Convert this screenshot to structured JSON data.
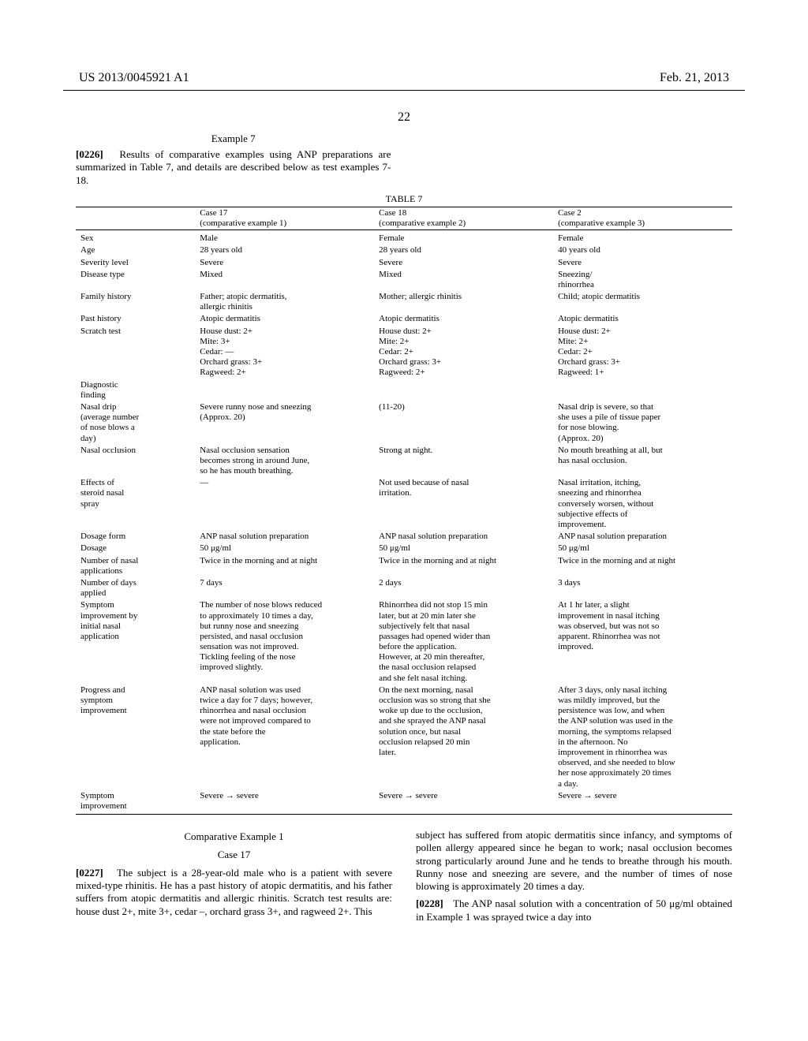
{
  "header": {
    "left": "US 2013/0045921 A1",
    "right": "Feb. 21, 2013"
  },
  "page_number": "22",
  "example7": {
    "title": "Example 7",
    "para_num": "[0226]",
    "para_text": "Results of comparative examples using ANP preparations are summarized in Table 7, and details are described below as test examples 7-18."
  },
  "table7": {
    "title": "TABLE 7",
    "col_labels": {
      "blank": "",
      "c1a": "Case 17",
      "c1b": "(comparative example 1)",
      "c2a": "Case 18",
      "c2b": "(comparative example 2)",
      "c3a": "Case 2",
      "c3b": "(comparative example 3)"
    },
    "rows": [
      {
        "h": "Sex",
        "c1": "Male",
        "c2": "Female",
        "c3": "Female"
      },
      {
        "h": "Age",
        "c1": "28 years old",
        "c2": "28 years old",
        "c3": "40 years old"
      },
      {
        "h": "Severity level",
        "c1": "Severe",
        "c2": "Severe",
        "c3": "Severe"
      },
      {
        "h": "Disease type",
        "c1": "Mixed",
        "c2": "Mixed",
        "c3": "Sneezing/\nrhinorrhea"
      },
      {
        "h": "Family history",
        "c1": "Father; atopic dermatitis,\nallergic rhinitis",
        "c2": "Mother; allergic rhinitis",
        "c3": "Child; atopic dermatitis"
      },
      {
        "h": "Past history",
        "c1": "Atopic dermatitis",
        "c2": "Atopic dermatitis",
        "c3": "Atopic dermatitis"
      },
      {
        "h": "Scratch test",
        "c1": "House dust: 2+\nMite: 3+\nCedar: —\nOrchard grass: 3+\nRagweed: 2+",
        "c2": "House dust: 2+\nMite: 2+\nCedar: 2+\nOrchard grass: 3+\nRagweed: 2+",
        "c3": "House dust: 2+\nMite: 2+\nCedar: 2+\nOrchard grass: 3+\nRagweed: 1+"
      },
      {
        "h": "Diagnostic\nfinding",
        "c1": "",
        "c2": "",
        "c3": ""
      },
      {
        "h": "Nasal drip\n(average number\nof nose blows a\nday)",
        "c1": "Severe runny nose and sneezing\n(Approx. 20)",
        "c2": "(11-20)",
        "c3": "Nasal drip is severe, so that\nshe uses a pile of tissue paper\nfor nose blowing.\n(Approx. 20)"
      },
      {
        "h": "Nasal occlusion",
        "c1": "Nasal occlusion sensation\nbecomes strong in around June,\nso he has mouth breathing.",
        "c2": "Strong at night.",
        "c3": "No mouth breathing at all, but\nhas nasal occlusion."
      },
      {
        "h": "Effects of\nsteroid nasal\nspray",
        "c1": "—",
        "c2": "Not used because of nasal\nirritation.",
        "c3": "Nasal irritation, itching,\nsneezing and rhinorrhea\nconversely worsen, without\nsubjective effects of\nimprovement."
      },
      {
        "h": "Dosage form",
        "c1": "ANP nasal solution preparation",
        "c2": "ANP nasal solution preparation",
        "c3": "ANP nasal solution preparation"
      },
      {
        "h": "Dosage",
        "c1": "50 μg/ml",
        "c2": "50 μg/ml",
        "c3": "50 μg/ml"
      },
      {
        "h": "Number of nasal\napplications",
        "c1": "Twice in the morning and at night",
        "c2": "Twice in the morning and at night",
        "c3": "Twice in the morning and at night"
      },
      {
        "h": "Number of days\napplied",
        "c1": "7 days",
        "c2": "2 days",
        "c3": "3 days"
      },
      {
        "h": "Symptom\nimprovement by\ninitial nasal\napplication",
        "c1": "The number of nose blows reduced\nto approximately 10 times a day,\nbut runny nose and sneezing\npersisted, and nasal occlusion\nsensation was not improved.\nTickling feeling of the nose\nimproved slightly.",
        "c2": "Rhinorrhea did not stop 15 min\nlater, but at 20 min later she\nsubjectively felt that nasal\npassages had opened wider than\nbefore the application.\nHowever, at 20 min thereafter,\nthe nasal occlusion relapsed\nand she felt nasal itching.",
        "c3": "At 1 hr later, a slight\nimprovement in nasal itching\nwas observed, but was not so\napparent. Rhinorrhea was not\nimproved."
      },
      {
        "h": "Progress and\nsymptom\nimprovement",
        "c1": "ANP nasal solution was used\ntwice a day for 7 days; however,\nrhinorrhea and nasal occlusion\nwere not improved compared to\nthe state before the\napplication.",
        "c2": "On the next morning, nasal\nocclusion was so strong that she\nwoke up due to the occlusion,\nand she sprayed the ANP nasal\nsolution once, but nasal\nocclusion relapsed 20 min\nlater.",
        "c3": "After 3 days, only nasal itching\nwas mildly improved, but the\npersistence was low, and when\nthe ANP solution was used in the\nmorning, the symptoms relapsed\nin the afternoon. No\nimprovement in rhinorrhea was\nobserved, and she needed to blow\nher nose approximately 20 times\na day."
      },
      {
        "h": "Symptom\nimprovement",
        "c1": "Severe → severe",
        "c2": "Severe → severe",
        "c3": "Severe → severe"
      }
    ]
  },
  "lower": {
    "comp_heading": "Comparative Example 1",
    "case_heading": "Case 17",
    "left_num": "[0227]",
    "left_text": "The subject is a 28-year-old male who is a patient with severe mixed-type rhinitis. He has a past history of atopic dermatitis, and his father suffers from atopic dermatitis and allergic rhinitis. Scratch test results are: house dust 2+, mite 3+, cedar –, orchard grass 3+, and ragweed 2+. This",
    "right_text": "subject has suffered from atopic dermatitis since infancy, and symptoms of pollen allergy appeared since he began to work; nasal occlusion becomes strong particularly around June and he tends to breathe through his mouth. Runny nose and sneezing are severe, and the number of times of nose blowing is approximately 20 times a day.",
    "right_num": "[0228]",
    "right_text2": "The ANP nasal solution with a concentration of 50 μg/ml obtained in Example 1 was sprayed twice a day into"
  }
}
